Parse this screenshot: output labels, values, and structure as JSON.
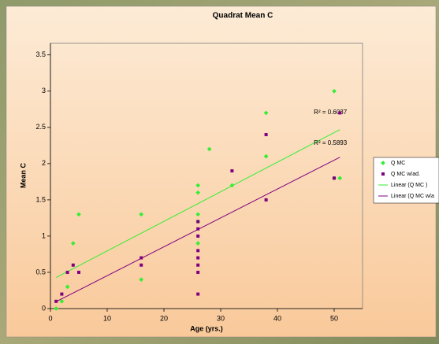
{
  "chart_data": {
    "type": "scatter",
    "title": "Quadrat Mean C",
    "x_label": "Age (yrs.)",
    "y_label": "Mean C",
    "xlim": [
      0,
      55
    ],
    "xticks": [
      0,
      10,
      20,
      30,
      40,
      50
    ],
    "ylim": [
      0,
      3.66
    ],
    "yticks": [
      0,
      0.5,
      1,
      1.5,
      2,
      2.5,
      3,
      3.5
    ],
    "series": [
      {
        "name": "Q MC",
        "color": "#33ee33",
        "x": [
          1,
          2,
          3,
          4,
          5,
          16,
          16,
          26,
          26,
          26,
          26,
          26,
          28,
          32,
          38,
          38,
          50,
          50,
          51
        ],
        "values": [
          0,
          0.1,
          0.3,
          0.9,
          1.3,
          1.3,
          0.4,
          1.7,
          1.6,
          1.3,
          1.2,
          0.9,
          2.2,
          1.7,
          2.7,
          2.1,
          3.0,
          1.8,
          1.8
        ]
      },
      {
        "name": "Q MC w/ad.",
        "color": "#800080",
        "x": [
          1,
          2,
          3,
          4,
          5,
          16,
          16,
          26,
          26,
          26,
          26,
          26,
          26,
          26,
          26,
          32,
          38,
          38,
          50,
          51
        ],
        "values": [
          0.1,
          0.2,
          0.5,
          0.6,
          0.5,
          0.7,
          0.6,
          1.2,
          1.1,
          1.0,
          0.8,
          0.7,
          0.6,
          0.5,
          0.2,
          1.9,
          2.4,
          1.5,
          1.8,
          2.7
        ]
      }
    ],
    "trendlines": [
      {
        "name": "Linear (Q MC )",
        "color": "#33ee33",
        "label": "R² = 0.6037"
      },
      {
        "name": "Linear (Q MC w/a",
        "color": "#800080",
        "label": "R² = 0.5893"
      }
    ]
  }
}
